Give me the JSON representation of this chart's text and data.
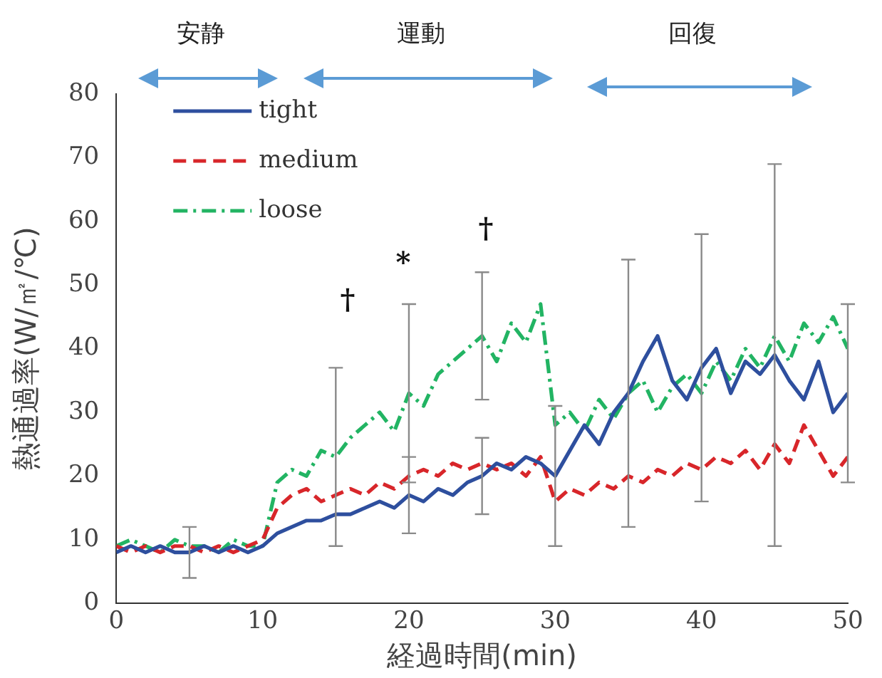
{
  "chart_data": {
    "type": "line",
    "xlabel": "経過時間(min)",
    "ylabel": "熱通過率(W/㎡/℃)",
    "x": [
      0,
      1,
      2,
      3,
      4,
      5,
      6,
      7,
      8,
      9,
      10,
      11,
      12,
      13,
      14,
      15,
      16,
      17,
      18,
      19,
      20,
      21,
      22,
      23,
      24,
      25,
      26,
      27,
      28,
      29,
      30,
      31,
      32,
      33,
      34,
      35,
      36,
      37,
      38,
      39,
      40,
      41,
      42,
      43,
      44,
      45,
      46,
      47,
      48,
      49,
      50
    ],
    "xlim": [
      0,
      50
    ],
    "xticks": [
      0,
      10,
      20,
      30,
      40,
      50
    ],
    "ylim": [
      0,
      80
    ],
    "yticks": [
      0,
      10,
      20,
      30,
      40,
      50,
      60,
      70,
      80
    ],
    "legend": "top left",
    "grid": false,
    "marker": "none",
    "series": [
      {
        "name": "tight",
        "color": "#2e4f9e",
        "line_style": "solid",
        "values": [
          8,
          9,
          8,
          9,
          8,
          8,
          9,
          8,
          9,
          8,
          9,
          11,
          12,
          13,
          13,
          14,
          14,
          15,
          16,
          15,
          17,
          16,
          18,
          17,
          19,
          20,
          22,
          21,
          23,
          22,
          20,
          24,
          28,
          25,
          30,
          33,
          38,
          42,
          35,
          32,
          37,
          40,
          33,
          38,
          36,
          39,
          35,
          32,
          38,
          30,
          33
        ],
        "errors": [
          null,
          null,
          null,
          null,
          null,
          4,
          null,
          null,
          null,
          null,
          null,
          null,
          null,
          null,
          null,
          null,
          null,
          null,
          null,
          null,
          6,
          null,
          null,
          null,
          null,
          6,
          null,
          null,
          null,
          null,
          11,
          null,
          null,
          null,
          null,
          21,
          null,
          null,
          null,
          null,
          21,
          null,
          null,
          null,
          null,
          30,
          null,
          null,
          null,
          null,
          14
        ]
      },
      {
        "name": "medium",
        "color": "#d8262a",
        "line_style": "dashed",
        "values": [
          9,
          8,
          9,
          8,
          9,
          9,
          8,
          9,
          8,
          9,
          10,
          15,
          17,
          18,
          16,
          17,
          18,
          17,
          19,
          18,
          20,
          21,
          20,
          22,
          21,
          22,
          21,
          22,
          20,
          23,
          16,
          18,
          17,
          19,
          18,
          20,
          19,
          21,
          20,
          22,
          21,
          23,
          22,
          24,
          21,
          25,
          22,
          28,
          24,
          20,
          23
        ]
      },
      {
        "name": "loose",
        "color": "#22b463",
        "line_style": "dotted",
        "values": [
          9,
          10,
          9,
          8,
          10,
          9,
          9,
          8,
          10,
          9,
          9,
          19,
          21,
          20,
          24,
          23,
          26,
          28,
          30,
          27,
          33,
          31,
          36,
          38,
          40,
          42,
          38,
          44,
          41,
          47,
          28,
          30,
          27,
          32,
          29,
          33,
          35,
          30,
          34,
          36,
          33,
          38,
          35,
          40,
          37,
          42,
          38,
          44,
          41,
          45,
          40
        ],
        "errors": [
          null,
          null,
          null,
          null,
          null,
          null,
          null,
          null,
          null,
          null,
          null,
          null,
          null,
          null,
          null,
          14,
          null,
          null,
          null,
          null,
          14,
          null,
          null,
          null,
          null,
          10,
          null,
          null,
          null,
          null,
          null,
          null,
          null,
          null,
          null,
          null,
          null,
          null,
          null,
          null,
          null,
          null,
          null,
          null,
          null,
          null,
          null,
          null,
          null,
          null,
          null
        ]
      }
    ],
    "annotations": [
      "†",
      "*",
      "†",
      "安静",
      "運動",
      "回復"
    ]
  }
}
